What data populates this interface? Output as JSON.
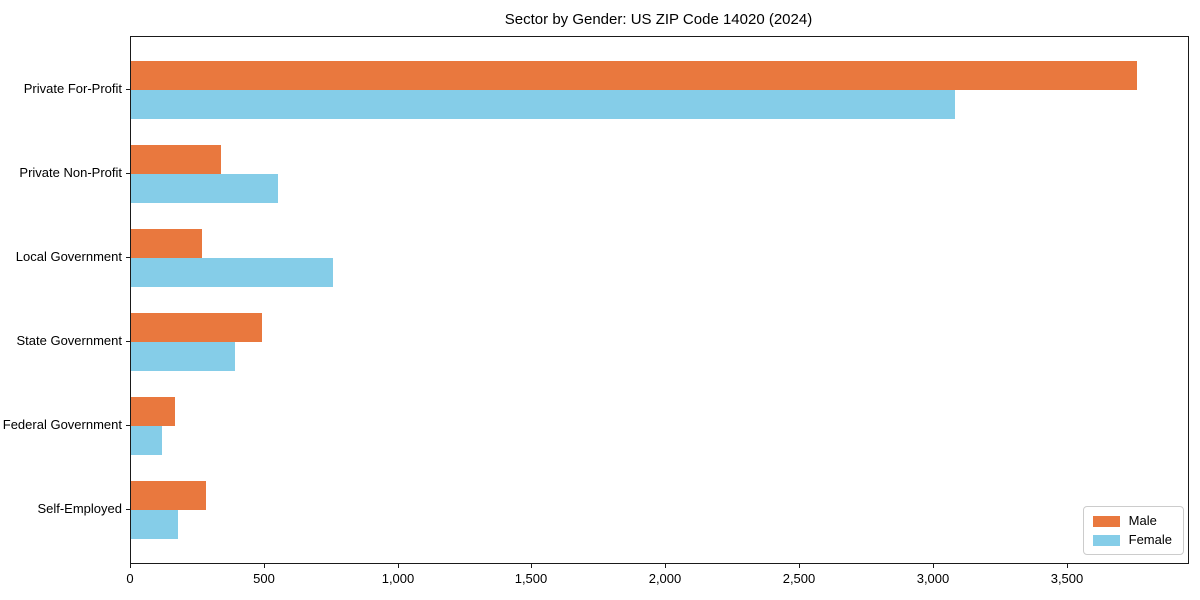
{
  "page": {
    "background_color": "#ffffff"
  },
  "chart_data": {
    "type": "bar",
    "orientation": "horizontal",
    "title": "Sector by Gender: US ZIP Code 14020 (2024)",
    "categories": [
      "Private For-Profit",
      "Private Non-Profit",
      "Local Government",
      "State Government",
      "Federal Government",
      "Self-Employed"
    ],
    "series": [
      {
        "name": "Male",
        "color": "#e9783e",
        "values": [
          3760,
          335,
          265,
          490,
          165,
          280
        ]
      },
      {
        "name": "Female",
        "color": "#85cde8",
        "values": [
          3080,
          550,
          755,
          390,
          115,
          175
        ]
      }
    ],
    "xlabel": "",
    "ylabel": "",
    "xlim": [
      0,
      3950
    ],
    "xticks": [
      0,
      500,
      1000,
      1500,
      2000,
      2500,
      3000,
      3500
    ],
    "xtick_labels": [
      "0",
      "500",
      "1,000",
      "1,500",
      "2,000",
      "2,500",
      "3,000",
      "3,500"
    ],
    "grid": false,
    "plot_border_color": "#1a1a1a",
    "legend": {
      "position": "lower right",
      "entries": [
        "Male",
        "Female"
      ]
    }
  }
}
